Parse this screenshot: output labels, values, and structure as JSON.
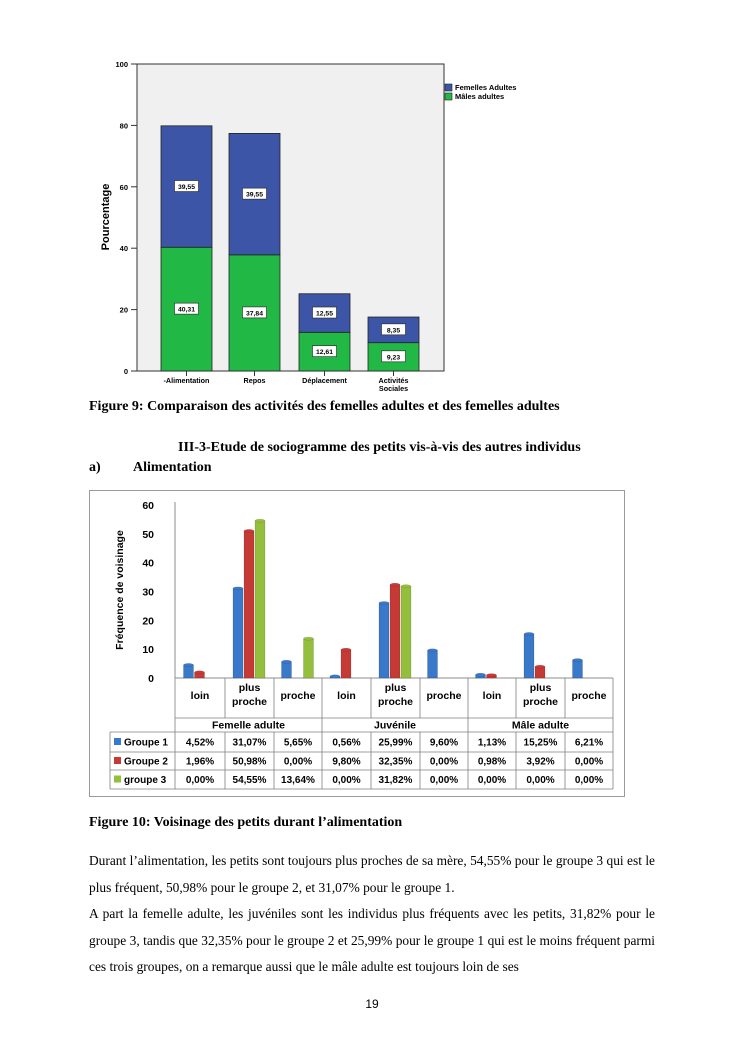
{
  "chart_data": [
    {
      "type": "bar",
      "stacked": true,
      "ylabel": "Pourcentage",
      "ylim": [
        0,
        100
      ],
      "yticks": [
        "0",
        "20",
        "40",
        "60",
        "80",
        "100"
      ],
      "categories": [
        "-Alimentation",
        "Repos",
        "Déplacement",
        "Activités Sociales"
      ],
      "series": [
        {
          "name": "Mâles adultes",
          "color": "#21b845",
          "values": [
            40.31,
            37.84,
            12.61,
            9.23
          ],
          "labels": [
            "40,31",
            "37,84",
            "12,61",
            "9,23"
          ]
        },
        {
          "name": "Femelles Adultes",
          "color": "#3d55a6",
          "values": [
            39.55,
            39.55,
            12.55,
            8.35
          ],
          "labels": [
            "39,55",
            "39,55",
            "12,55",
            "8,35"
          ]
        }
      ],
      "legend_position": "top-right",
      "grid": false
    },
    {
      "type": "bar",
      "ylabel": "Fréquence de voisinage",
      "ylim": [
        0,
        60
      ],
      "yticks": [
        "0",
        "10",
        "20",
        "30",
        "40",
        "50",
        "60"
      ],
      "groups": [
        {
          "name": "Femelle adulte",
          "categories": [
            "loin",
            "plus proche",
            "proche"
          ]
        },
        {
          "name": "Juvénile",
          "categories": [
            "loin",
            "plus proche",
            "proche"
          ]
        },
        {
          "name": "Mâle adulte",
          "categories": [
            "loin",
            "plus proche",
            "proche"
          ]
        }
      ],
      "series": [
        {
          "name": "Groupe 1",
          "color": "#3a78c9",
          "values": [
            4.52,
            31.07,
            5.65,
            0.56,
            25.99,
            9.6,
            1.13,
            15.25,
            6.21
          ],
          "labels": [
            "4,52%",
            "31,07%",
            "5,65%",
            "0,56%",
            "25,99%",
            "9,60%",
            "1,13%",
            "15,25%",
            "6,21%"
          ]
        },
        {
          "name": "Groupe 2",
          "color": "#c63a36",
          "values": [
            1.96,
            50.98,
            0.0,
            9.8,
            32.35,
            0.0,
            0.98,
            3.92,
            0.0
          ],
          "labels": [
            "1,96%",
            "50,98%",
            "0,00%",
            "9,80%",
            "32,35%",
            "0,00%",
            "0,98%",
            "3,92%",
            "0,00%"
          ]
        },
        {
          "name": "groupe 3",
          "color": "#93bf3c",
          "values": [
            0.0,
            54.55,
            13.64,
            0.0,
            31.82,
            0.0,
            0.0,
            0.0,
            0.0
          ],
          "labels": [
            "0,00%",
            "54,55%",
            "13,64%",
            "0,00%",
            "31,82%",
            "0,00%",
            "0,00%",
            "0,00%",
            "0,00%"
          ]
        }
      ],
      "data_table": true,
      "grid": false
    }
  ],
  "text": {
    "fig9_caption": "Figure 9: Comparaison des activités des femelles adultes et des femelles adultes",
    "section_heading": "III-3-Etude de sociogramme des petits vis-à-vis des autres individus",
    "subsection_marker": "a)",
    "subsection_title": "Alimentation",
    "fig10_caption": "Figure 10: Voisinage des petits durant l’alimentation",
    "para1": "Durant l’alimentation, les petits sont toujours plus proches de sa mère, 54,55% pour le groupe 3 qui est le plus fréquent, 50,98% pour le groupe 2, et 31,07% pour le groupe 1.",
    "para2": "A part la femelle adulte, les juvéniles sont les individus plus fréquents avec les petits, 31,82% pour le groupe 3, tandis que 32,35% pour le groupe 2 et 25,99% pour le groupe 1 qui est le moins fréquent parmi ces trois groupes, on a remarque aussi que le mâle adulte est toujours loin de ses",
    "page_number": "19"
  }
}
